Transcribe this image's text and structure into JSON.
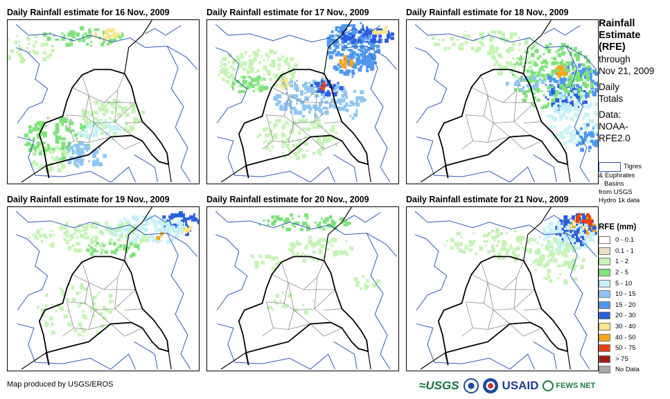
{
  "panels": [
    {
      "title": "Daily Rainfall estimate for 16 Nov., 2009"
    },
    {
      "title": "Daily Rainfall estimate for 17 Nov., 2009"
    },
    {
      "title": "Daily Rainfall estimate for 18 Nov., 2009"
    },
    {
      "title": "Daily Rainfall estimate for 19 Nov., 2009"
    },
    {
      "title": "Daily Rainfall estimate for 20 Nov., 2009"
    },
    {
      "title": "Daily Rainfall estimate for 21 Nov., 2009"
    }
  ],
  "side": {
    "title_line1": "Rainfall",
    "title_line2": "Estimate",
    "title_line3": "(RFE)",
    "through": "through",
    "date": "Nov 21, 2009",
    "daily": "Daily",
    "totals": "Totals",
    "data_label": "Data:",
    "data_source1": "NOAA-",
    "data_source2": "RFE2.0"
  },
  "basin_legend": {
    "line1": "Tigres",
    "line2": "& Euphrates",
    "line3": "Basins",
    "line4": "from USGS",
    "line5": "Hydro 1k data",
    "outline_color": "#2d59b8"
  },
  "rfe_legend": {
    "title": "RFE (mm)",
    "items": [
      {
        "label": "0 - 0.1",
        "color": "#ffffff"
      },
      {
        "label": "0.1 - 1",
        "color": "#eedcc4"
      },
      {
        "label": "1 - 2",
        "color": "#c4f3b4"
      },
      {
        "label": "2 - 5",
        "color": "#7ee27a"
      },
      {
        "label": "5 - 10",
        "color": "#c4f1f8"
      },
      {
        "label": "10 - 15",
        "color": "#8fc6f3"
      },
      {
        "label": "15 - 20",
        "color": "#4f97ee"
      },
      {
        "label": "20 - 30",
        "color": "#2a5ee0"
      },
      {
        "label": "30 - 40",
        "color": "#fbe48a"
      },
      {
        "label": "40 - 50",
        "color": "#f7a61c"
      },
      {
        "label": "50 - 75",
        "color": "#ee3d12"
      },
      {
        "label": "> 75",
        "color": "#a01c14"
      },
      {
        "label": "No Data",
        "color": "#a8a8a8"
      }
    ]
  },
  "footer": {
    "credit": "Map produced by USGS/EROS",
    "logo_usgs": "≈USGS",
    "logo_usaid": "USAID",
    "logo_fews": "FEWS NET"
  }
}
